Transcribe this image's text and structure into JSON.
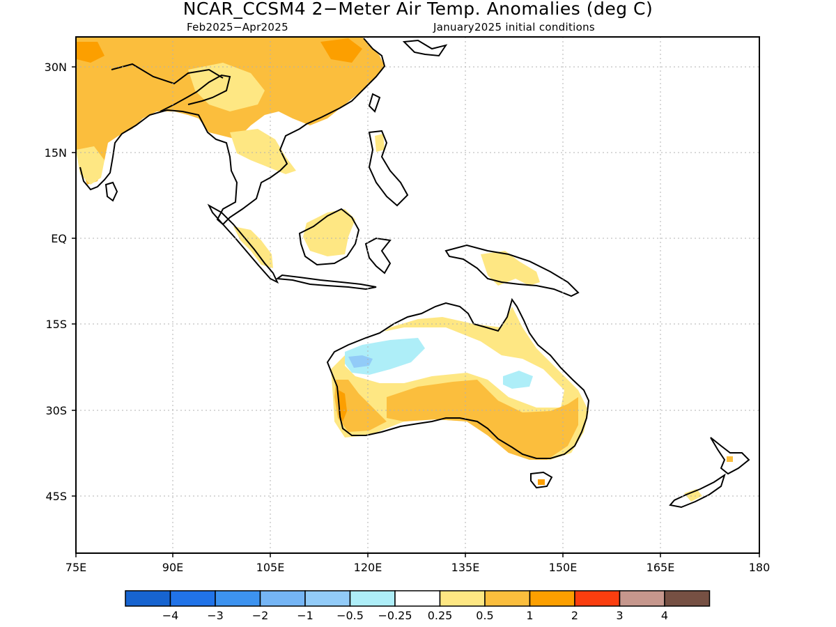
{
  "title": "NCAR_CCSM4 2−Meter Air Temp. Anomalies (deg C)",
  "subtitle_period": "Feb2025−Apr2025",
  "subtitle_init": "January2025 initial conditions",
  "map": {
    "lon_range": [
      75,
      180
    ],
    "lat_range": [
      -50,
      35
    ],
    "lon_ticks": [
      "75E",
      "90E",
      "105E",
      "120E",
      "135E",
      "150E",
      "165E",
      "180"
    ],
    "lat_ticks": [
      "30N",
      "15N",
      "EQ",
      "15S",
      "30S",
      "45S"
    ],
    "grid": "dotted"
  },
  "colorbar": {
    "colors": [
      "#1764d0",
      "#2173e8",
      "#3d93f0",
      "#75b5f5",
      "#92cbf8",
      "#aeeef8",
      "#ffffff",
      "#fee783",
      "#fbbe3d",
      "#fc9f00",
      "#fb3e0f",
      "#c6978d",
      "#765043"
    ],
    "labels": [
      "−4",
      "−3",
      "−2",
      "−1",
      "−0.5",
      "−0.25",
      "0.25",
      "0.5",
      "1",
      "2",
      "3",
      "4"
    ]
  }
}
